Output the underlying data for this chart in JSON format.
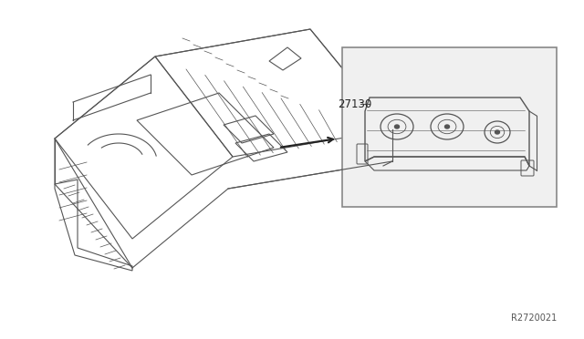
{
  "background_color": "#ffffff",
  "line_color": "#555555",
  "box_color": "#cccccc",
  "label_27130": "27130",
  "label_ref": "R2720021",
  "fig_width": 6.4,
  "fig_height": 3.72,
  "dpi": 100
}
